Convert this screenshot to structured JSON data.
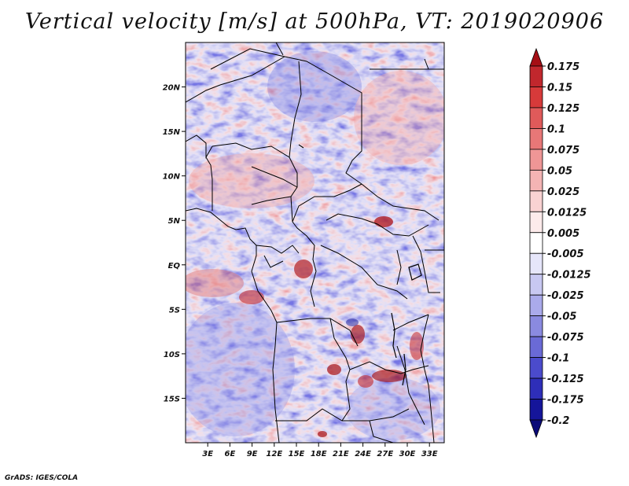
{
  "title": "Vertical velocity [m/s] at 500hPa, VT: 2019020906",
  "credit": "GrADS: IGES/COLA",
  "map": {
    "variable": "Vertical velocity",
    "units": "m/s",
    "level": "500hPa",
    "valid_time": "2019020906",
    "lon_range": [
      0,
      35
    ],
    "lat_range": [
      -20,
      25
    ],
    "lat_ticks": [
      {
        "value": 20,
        "label": "20N"
      },
      {
        "value": 15,
        "label": "15N"
      },
      {
        "value": 10,
        "label": "10N"
      },
      {
        "value": 5,
        "label": "5N"
      },
      {
        "value": 0,
        "label": "EQ"
      },
      {
        "value": -5,
        "label": "5S"
      },
      {
        "value": -10,
        "label": "10S"
      },
      {
        "value": -15,
        "label": "15S"
      }
    ],
    "lon_ticks": [
      {
        "value": 3,
        "label": "3E"
      },
      {
        "value": 6,
        "label": "6E"
      },
      {
        "value": 9,
        "label": "9E"
      },
      {
        "value": 12,
        "label": "12E"
      },
      {
        "value": 15,
        "label": "15E"
      },
      {
        "value": 18,
        "label": "18E"
      },
      {
        "value": 21,
        "label": "21E"
      },
      {
        "value": 24,
        "label": "24E"
      },
      {
        "value": 27,
        "label": "27E"
      },
      {
        "value": 30,
        "label": "30E"
      },
      {
        "value": 33,
        "label": "33E"
      }
    ]
  },
  "colorbar": {
    "labels": [
      "0.175",
      "0.15",
      "0.125",
      "0.1",
      "0.075",
      "0.05",
      "0.025",
      "0.0125",
      "0.005",
      "-0.005",
      "-0.0125",
      "-0.025",
      "-0.05",
      "-0.075",
      "-0.1",
      "-0.125",
      "-0.175",
      "-0.2"
    ],
    "colors": [
      "#a50f15",
      "#c1272d",
      "#d73a3a",
      "#e05a5a",
      "#e87777",
      "#ef9696",
      "#f4b4b4",
      "#f9d2d2",
      "#fdebeb",
      "#ffffff",
      "#e6e6fa",
      "#c8c8f2",
      "#aaaaeb",
      "#8a8ae0",
      "#6a6ad6",
      "#4b4bcc",
      "#2e2eb8",
      "#15159a",
      "#0a0a78"
    ]
  }
}
